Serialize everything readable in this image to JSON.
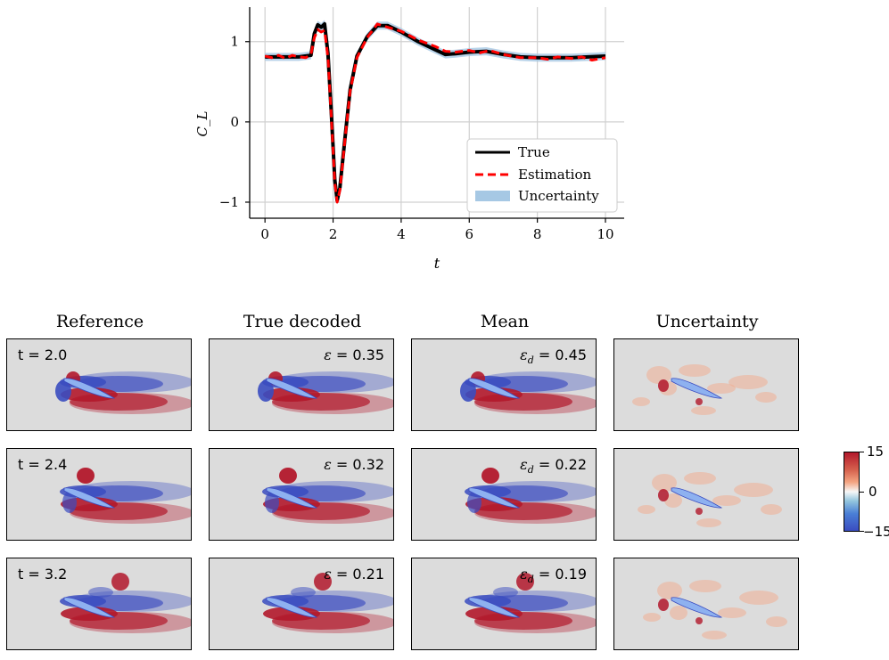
{
  "chart_data": {
    "type": "line",
    "ylabel": "C_L",
    "xlabel": "t",
    "xlim": [
      -0.45,
      10.55
    ],
    "ylim": [
      -1.2,
      1.43
    ],
    "xticks": [
      0,
      2,
      4,
      6,
      8,
      10
    ],
    "yticks": [
      -1,
      0,
      1
    ],
    "xtick_labels": [
      "0",
      "2",
      "4",
      "6",
      "8",
      "10"
    ],
    "ytick_labels": [
      "−1",
      "0",
      "1"
    ],
    "grid": true,
    "legend_position": "lower-right",
    "legend": [
      "True",
      "Estimation",
      "Uncertainty"
    ],
    "series": [
      {
        "name": "True",
        "color": "#000000",
        "points": [
          [
            0,
            0.81
          ],
          [
            0.5,
            0.81
          ],
          [
            1.0,
            0.81
          ],
          [
            1.35,
            0.83
          ],
          [
            1.45,
            1.1
          ],
          [
            1.55,
            1.21
          ],
          [
            1.65,
            1.18
          ],
          [
            1.75,
            1.22
          ],
          [
            1.85,
            0.85
          ],
          [
            1.95,
            0.1
          ],
          [
            2.05,
            -0.72
          ],
          [
            2.12,
            -0.98
          ],
          [
            2.2,
            -0.82
          ],
          [
            2.35,
            -0.2
          ],
          [
            2.5,
            0.4
          ],
          [
            2.7,
            0.82
          ],
          [
            3.0,
            1.06
          ],
          [
            3.3,
            1.2
          ],
          [
            3.6,
            1.2
          ],
          [
            4.0,
            1.12
          ],
          [
            4.5,
            1.0
          ],
          [
            5.0,
            0.9
          ],
          [
            5.3,
            0.84
          ],
          [
            5.6,
            0.85
          ],
          [
            6.0,
            0.87
          ],
          [
            6.5,
            0.88
          ],
          [
            7.0,
            0.84
          ],
          [
            7.5,
            0.81
          ],
          [
            8.0,
            0.8
          ],
          [
            8.5,
            0.8
          ],
          [
            9.0,
            0.8
          ],
          [
            9.5,
            0.81
          ],
          [
            10.0,
            0.82
          ]
        ]
      },
      {
        "name": "Estimation",
        "color": "#ff0000",
        "points": [
          [
            0,
            0.82
          ],
          [
            0.2,
            0.8
          ],
          [
            0.4,
            0.83
          ],
          [
            0.6,
            0.79
          ],
          [
            0.8,
            0.83
          ],
          [
            1.0,
            0.81
          ],
          [
            1.2,
            0.8
          ],
          [
            1.35,
            0.84
          ],
          [
            1.45,
            1.05
          ],
          [
            1.55,
            1.15
          ],
          [
            1.65,
            1.12
          ],
          [
            1.75,
            1.14
          ],
          [
            1.85,
            0.8
          ],
          [
            1.95,
            0.05
          ],
          [
            2.05,
            -0.76
          ],
          [
            2.12,
            -1.0
          ],
          [
            2.2,
            -0.85
          ],
          [
            2.35,
            -0.22
          ],
          [
            2.5,
            0.38
          ],
          [
            2.7,
            0.8
          ],
          [
            3.0,
            1.05
          ],
          [
            3.3,
            1.22
          ],
          [
            3.6,
            1.18
          ],
          [
            4.0,
            1.13
          ],
          [
            4.5,
            1.02
          ],
          [
            5.0,
            0.94
          ],
          [
            5.3,
            0.88
          ],
          [
            5.6,
            0.87
          ],
          [
            6.0,
            0.89
          ],
          [
            6.3,
            0.86
          ],
          [
            6.6,
            0.89
          ],
          [
            7.0,
            0.84
          ],
          [
            7.5,
            0.8
          ],
          [
            8.0,
            0.8
          ],
          [
            8.3,
            0.78
          ],
          [
            8.6,
            0.81
          ],
          [
            9.0,
            0.79
          ],
          [
            9.3,
            0.81
          ],
          [
            9.6,
            0.77
          ],
          [
            10.0,
            0.8
          ]
        ]
      }
    ]
  },
  "grid_titles": [
    "Reference",
    "True decoded",
    "Mean",
    "Uncertainty"
  ],
  "rows": [
    {
      "time_label": "t = 2.0",
      "eps": "0.35",
      "eps_d": "0.45"
    },
    {
      "time_label": "t = 2.4",
      "eps": "0.32",
      "eps_d": "0.22"
    },
    {
      "time_label": "t = 3.2",
      "eps": "0.21",
      "eps_d": "0.19"
    }
  ],
  "colorbar": {
    "max": "15",
    "mid": "0",
    "min": "−15"
  },
  "colors": {
    "red": "#b2182b",
    "blue": "#3a4cc0",
    "background": "#dcdcdc",
    "uncertainty": "#a6c8e4"
  }
}
